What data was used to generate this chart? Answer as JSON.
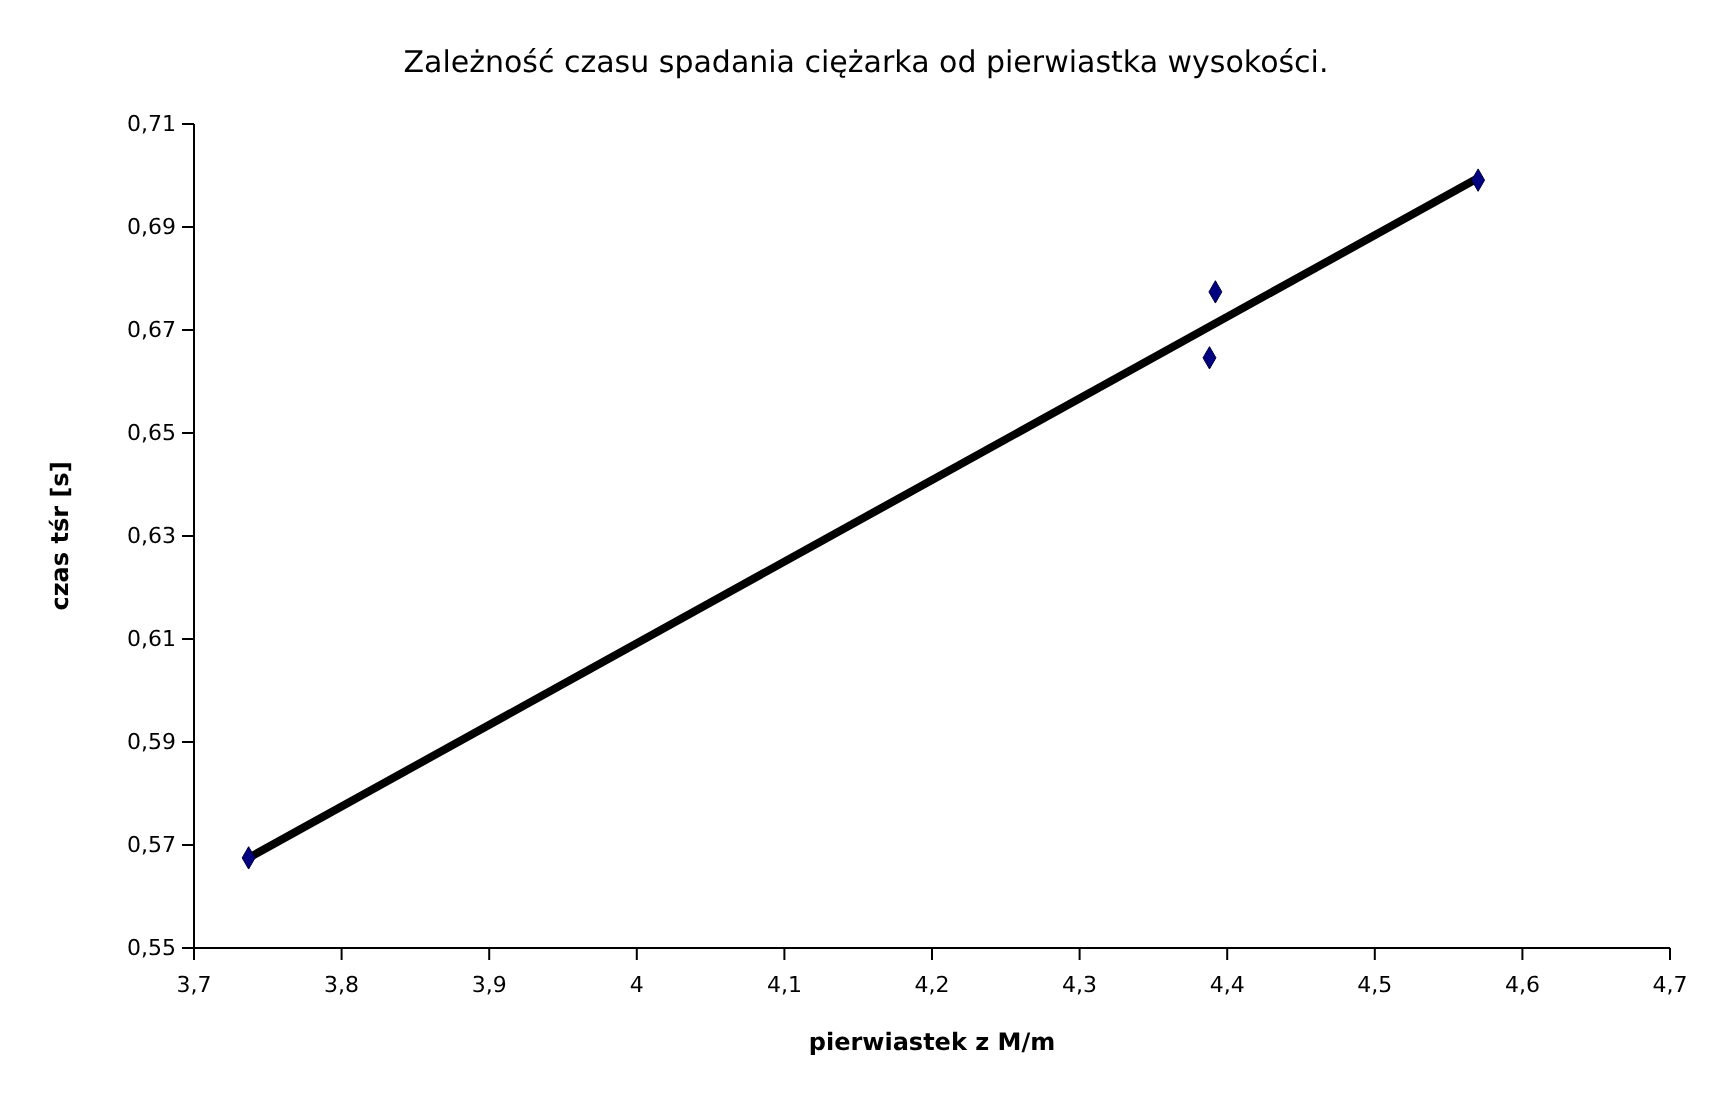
{
  "chart_data": {
    "type": "scatter",
    "title": "Zależność czasu spadania ciężarka od pierwiastka wysokości.",
    "xlabel": "pierwiastek z M/m",
    "ylabel": "czas tśr [s]",
    "xlim": [
      3.7,
      4.7
    ],
    "ylim": [
      0.55,
      0.71
    ],
    "xticks": [
      {
        "value": 3.7,
        "label": "3,7"
      },
      {
        "value": 3.8,
        "label": "3,8"
      },
      {
        "value": 3.9,
        "label": "3,9"
      },
      4,
      {
        "value": 4.1,
        "label": "4,1"
      },
      {
        "value": 4.2,
        "label": "4,2"
      },
      {
        "value": 4.3,
        "label": "4,3"
      },
      {
        "value": 4.4,
        "label": "4,4"
      },
      {
        "value": 4.5,
        "label": "4,5"
      },
      {
        "value": 4.6,
        "label": "4,6"
      },
      {
        "value": 4.7,
        "label": "4,7"
      }
    ],
    "yticks": [
      {
        "value": 0.55,
        "label": "0,55"
      },
      {
        "value": 0.57,
        "label": "0,57"
      },
      {
        "value": 0.59,
        "label": "0,59"
      },
      {
        "value": 0.61,
        "label": "0,61"
      },
      {
        "value": 0.63,
        "label": "0,63"
      },
      {
        "value": 0.65,
        "label": "0,65"
      },
      {
        "value": 0.67,
        "label": "0,67"
      },
      {
        "value": 0.69,
        "label": "0,69"
      },
      {
        "value": 0.71,
        "label": "0,71"
      }
    ],
    "grid": false,
    "series": [
      {
        "type": "line",
        "color": "#000000",
        "marker": "none",
        "line_style": "solid",
        "x": [
          3.737,
          4.57
        ],
        "values": [
          0.5675,
          0.6995
        ]
      },
      {
        "color": "#000080",
        "marker": "diamond",
        "x": [
          3.737,
          4.388,
          4.392,
          4.57
        ],
        "values": [
          0.5675,
          0.6646,
          0.6774,
          0.6991
        ]
      }
    ]
  }
}
